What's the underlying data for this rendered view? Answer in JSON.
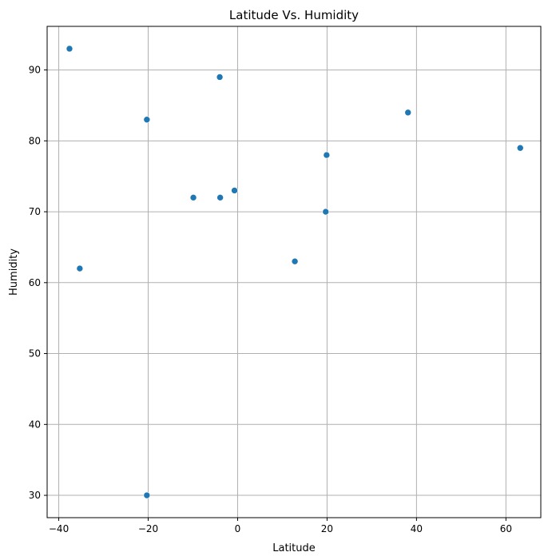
{
  "chart_data": {
    "type": "scatter",
    "title": "Latitude Vs. Humidity",
    "xlabel": "Latitude",
    "ylabel": "Humidity",
    "xlim": [
      -42.6,
      67.8
    ],
    "ylim": [
      26.85,
      96.15
    ],
    "xticks": [
      -40,
      -20,
      0,
      20,
      40,
      60
    ],
    "yticks": [
      30,
      40,
      50,
      60,
      70,
      80,
      90
    ],
    "xtick_labels": [
      "−40",
      "−20",
      "0",
      "20",
      "40",
      "60"
    ],
    "ytick_labels": [
      "30",
      "40",
      "50",
      "60",
      "70",
      "80",
      "90"
    ],
    "grid": true,
    "point_color": "#1f77b4",
    "points": [
      {
        "x": -37.6,
        "y": 93
      },
      {
        "x": -35.3,
        "y": 62
      },
      {
        "x": -20.3,
        "y": 83
      },
      {
        "x": -20.3,
        "y": 30
      },
      {
        "x": -9.9,
        "y": 72
      },
      {
        "x": -4.0,
        "y": 89
      },
      {
        "x": -3.9,
        "y": 72
      },
      {
        "x": -0.7,
        "y": 73
      },
      {
        "x": 12.8,
        "y": 63
      },
      {
        "x": 19.7,
        "y": 70
      },
      {
        "x": 19.9,
        "y": 78
      },
      {
        "x": 38.1,
        "y": 84
      },
      {
        "x": 63.2,
        "y": 79
      }
    ]
  }
}
